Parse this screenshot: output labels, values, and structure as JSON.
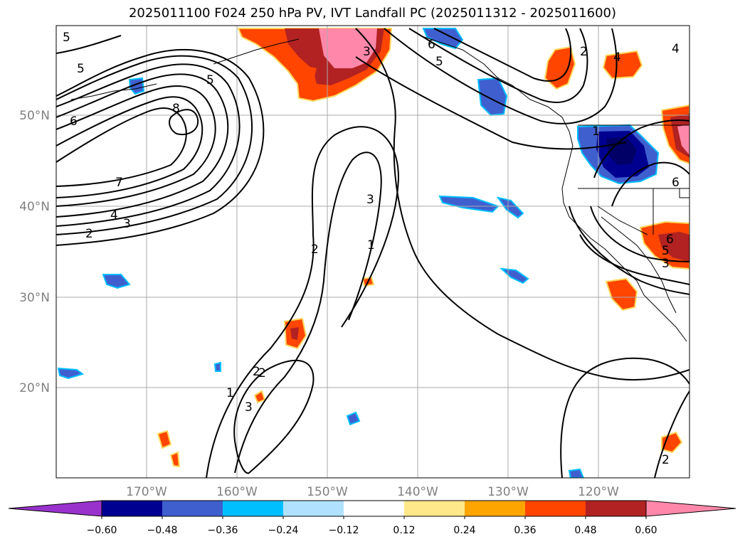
{
  "title": "2025011100 F024 250 hPa PV, IVT Landfall PC (2025011312 - 2025011600)",
  "map": {
    "lat_ticks": [
      "50°N",
      "40°N",
      "30°N",
      "20°N"
    ],
    "lon_ticks": [
      "170°W",
      "160°W",
      "150°W",
      "140°W",
      "130°W",
      "120°W"
    ],
    "gridlines": true
  },
  "colorbar": {
    "extend": "both",
    "ticks": [
      "−0.60",
      "−0.48",
      "−0.36",
      "−0.24",
      "−0.12",
      "0.12",
      "0.24",
      "0.36",
      "0.48",
      "0.60"
    ],
    "colors": [
      "#9932cc",
      "#000090",
      "#3f5fcf",
      "#00bfff",
      "#b0e2ff",
      "#ffffff",
      "#ffe88a",
      "#ffa500",
      "#ff4500",
      "#b22222",
      "#ff88aa"
    ]
  },
  "contour_labels": [
    "5",
    "5",
    "5",
    "6",
    "8",
    "7",
    "4",
    "3",
    "2",
    "6",
    "5",
    "3",
    "3",
    "2",
    "1",
    "2",
    "1",
    "2",
    "3",
    "2",
    "4",
    "6",
    "5",
    "3",
    "1",
    "6",
    "4",
    "2"
  ]
}
